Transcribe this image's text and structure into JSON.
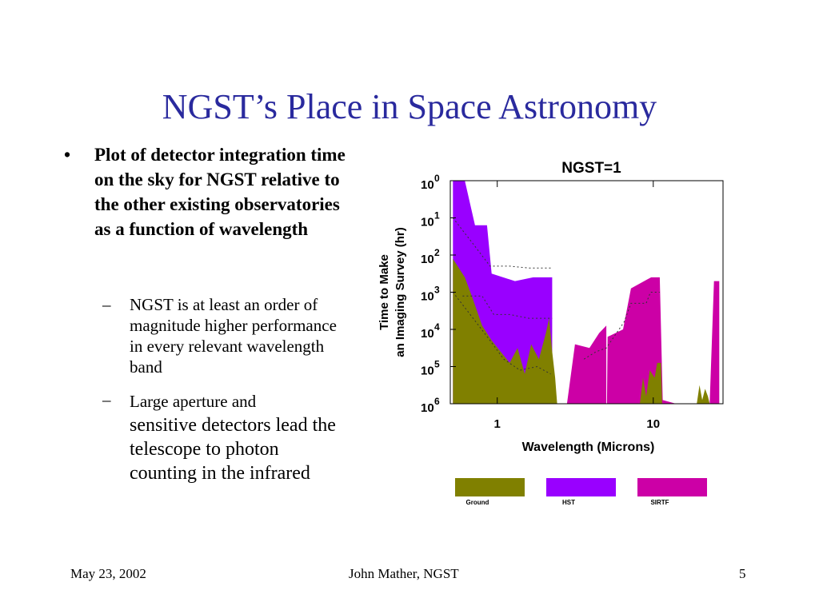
{
  "slide": {
    "title": "NGST’s Place in Space Astronomy",
    "bullet_main": "Plot of detector integration time  on the sky for NGST relative to the other existing observatories as a function of wavelength",
    "sub_bullets": [
      "NGST is at least an order of magnitude higher performance in every relevant wavelength band",
      {
        "first": "Large aperture and",
        "rest": "sensitive detectors lead the telescope to photon counting in the infrared"
      }
    ],
    "bullet_symbol": "•",
    "dash_symbol": "–"
  },
  "footer": {
    "date": "May 23, 2002",
    "author": "John Mather, NGST",
    "page": "5"
  },
  "chart_data": {
    "type": "area",
    "title": "NGST=1",
    "xlabel": "Wavelength (Microns)",
    "ylabel_line1": "Time to Make",
    "ylabel_line2": "an Imaging Survey (hr)",
    "xscale": "log",
    "xlim": [
      0.5,
      28
    ],
    "ylim_exponent": [
      0,
      6
    ],
    "x_ticks": [
      {
        "value": 1,
        "label": "1"
      },
      {
        "value": 10,
        "label": "10"
      }
    ],
    "y_ticks": [
      {
        "exp": 0,
        "base": "10",
        "sup": "0"
      },
      {
        "exp": 1,
        "base": "10",
        "sup": "1"
      },
      {
        "exp": 2,
        "base": "10",
        "sup": "2"
      },
      {
        "exp": 3,
        "base": "10",
        "sup": "3"
      },
      {
        "exp": 4,
        "base": "10",
        "sup": "4"
      },
      {
        "exp": 5,
        "base": "10",
        "sup": "5"
      },
      {
        "exp": 6,
        "base": "10",
        "sup": "6"
      }
    ],
    "y_direction": "inverted",
    "series": [
      {
        "name": "HST",
        "color": "#9900ff",
        "points": [
          [
            0.52,
            0
          ],
          [
            0.62,
            0
          ],
          [
            0.72,
            1.2
          ],
          [
            0.86,
            1.2
          ],
          [
            0.92,
            2.5
          ],
          [
            1.3,
            2.7
          ],
          [
            1.7,
            2.6
          ],
          [
            2.25,
            2.6
          ],
          [
            2.25,
            6
          ],
          [
            0.52,
            6
          ]
        ]
      },
      {
        "name": "SIRTF",
        "color": "#cc00a6",
        "points": [
          [
            2.8,
            6
          ],
          [
            3.15,
            4.4
          ],
          [
            3.9,
            4.5
          ],
          [
            4.5,
            4.1
          ],
          [
            5.0,
            3.9
          ],
          [
            5.0,
            6
          ],
          [
            5.05,
            6
          ],
          [
            5.1,
            4.2
          ],
          [
            6.4,
            4.0
          ],
          [
            7.2,
            2.9
          ],
          [
            9.2,
            2.65
          ],
          [
            9.7,
            2.6
          ],
          [
            11.0,
            2.6
          ],
          [
            11.5,
            5.9
          ],
          [
            14.0,
            6
          ],
          [
            23.0,
            6
          ],
          [
            24.5,
            2.7
          ],
          [
            26.5,
            2.7
          ],
          [
            26.5,
            6
          ]
        ]
      },
      {
        "name": "Ground",
        "color": "#808000",
        "points": [
          [
            0.52,
            2.1
          ],
          [
            0.62,
            2.6
          ],
          [
            0.7,
            3.2
          ],
          [
            0.8,
            3.9
          ],
          [
            0.92,
            4.3
          ],
          [
            1.05,
            4.6
          ],
          [
            1.2,
            4.9
          ],
          [
            1.35,
            4.5
          ],
          [
            1.5,
            5.2
          ],
          [
            1.65,
            4.4
          ],
          [
            1.85,
            4.8
          ],
          [
            2.05,
            4.1
          ],
          [
            2.15,
            3.7
          ],
          [
            2.25,
            4.6
          ],
          [
            2.35,
            5.3
          ],
          [
            2.42,
            6
          ],
          [
            0.52,
            6
          ]
        ]
      },
      {
        "name": "Ground",
        "color": "#808000",
        "points": [
          [
            8.2,
            6
          ],
          [
            8.6,
            5.3
          ],
          [
            9.0,
            5.8
          ],
          [
            9.5,
            5.1
          ],
          [
            10.2,
            5.3
          ],
          [
            10.6,
            4.9
          ],
          [
            11.2,
            4.9
          ],
          [
            11.4,
            6
          ]
        ]
      },
      {
        "name": "Ground",
        "color": "#808000",
        "points": [
          [
            19.0,
            6
          ],
          [
            19.8,
            5.5
          ],
          [
            20.6,
            5.9
          ],
          [
            21.5,
            5.6
          ],
          [
            22.4,
            5.8
          ],
          [
            23.0,
            6
          ]
        ]
      }
    ],
    "dotted_lines": [
      [
        [
          0.52,
          1.0
        ],
        [
          0.7,
          1.7
        ],
        [
          0.9,
          2.3
        ],
        [
          1.2,
          2.3
        ],
        [
          1.6,
          2.35
        ],
        [
          2.25,
          2.35
        ]
      ],
      [
        [
          0.6,
          3.1
        ],
        [
          0.8,
          3.1
        ],
        [
          0.95,
          3.6
        ],
        [
          1.2,
          3.6
        ],
        [
          1.6,
          3.7
        ],
        [
          2.25,
          3.7
        ]
      ],
      [
        [
          0.52,
          3.0
        ],
        [
          0.7,
          3.7
        ],
        [
          0.9,
          4.3
        ],
        [
          1.1,
          4.8
        ],
        [
          1.4,
          5.1
        ],
        [
          1.8,
          5.0
        ],
        [
          2.2,
          5.2
        ]
      ],
      [
        [
          3.6,
          4.8
        ],
        [
          4.3,
          4.6
        ],
        [
          5.0,
          4.5
        ],
        [
          6.5,
          3.8
        ],
        [
          7.2,
          3.3
        ],
        [
          9.0,
          3.3
        ],
        [
          9.6,
          3.0
        ],
        [
          11.0,
          3.0
        ]
      ]
    ],
    "legend": [
      {
        "label": "Ground",
        "color": "#808000"
      },
      {
        "label": "HST",
        "color": "#9900ff"
      },
      {
        "label": "SIRTF",
        "color": "#cc00a6"
      }
    ]
  }
}
